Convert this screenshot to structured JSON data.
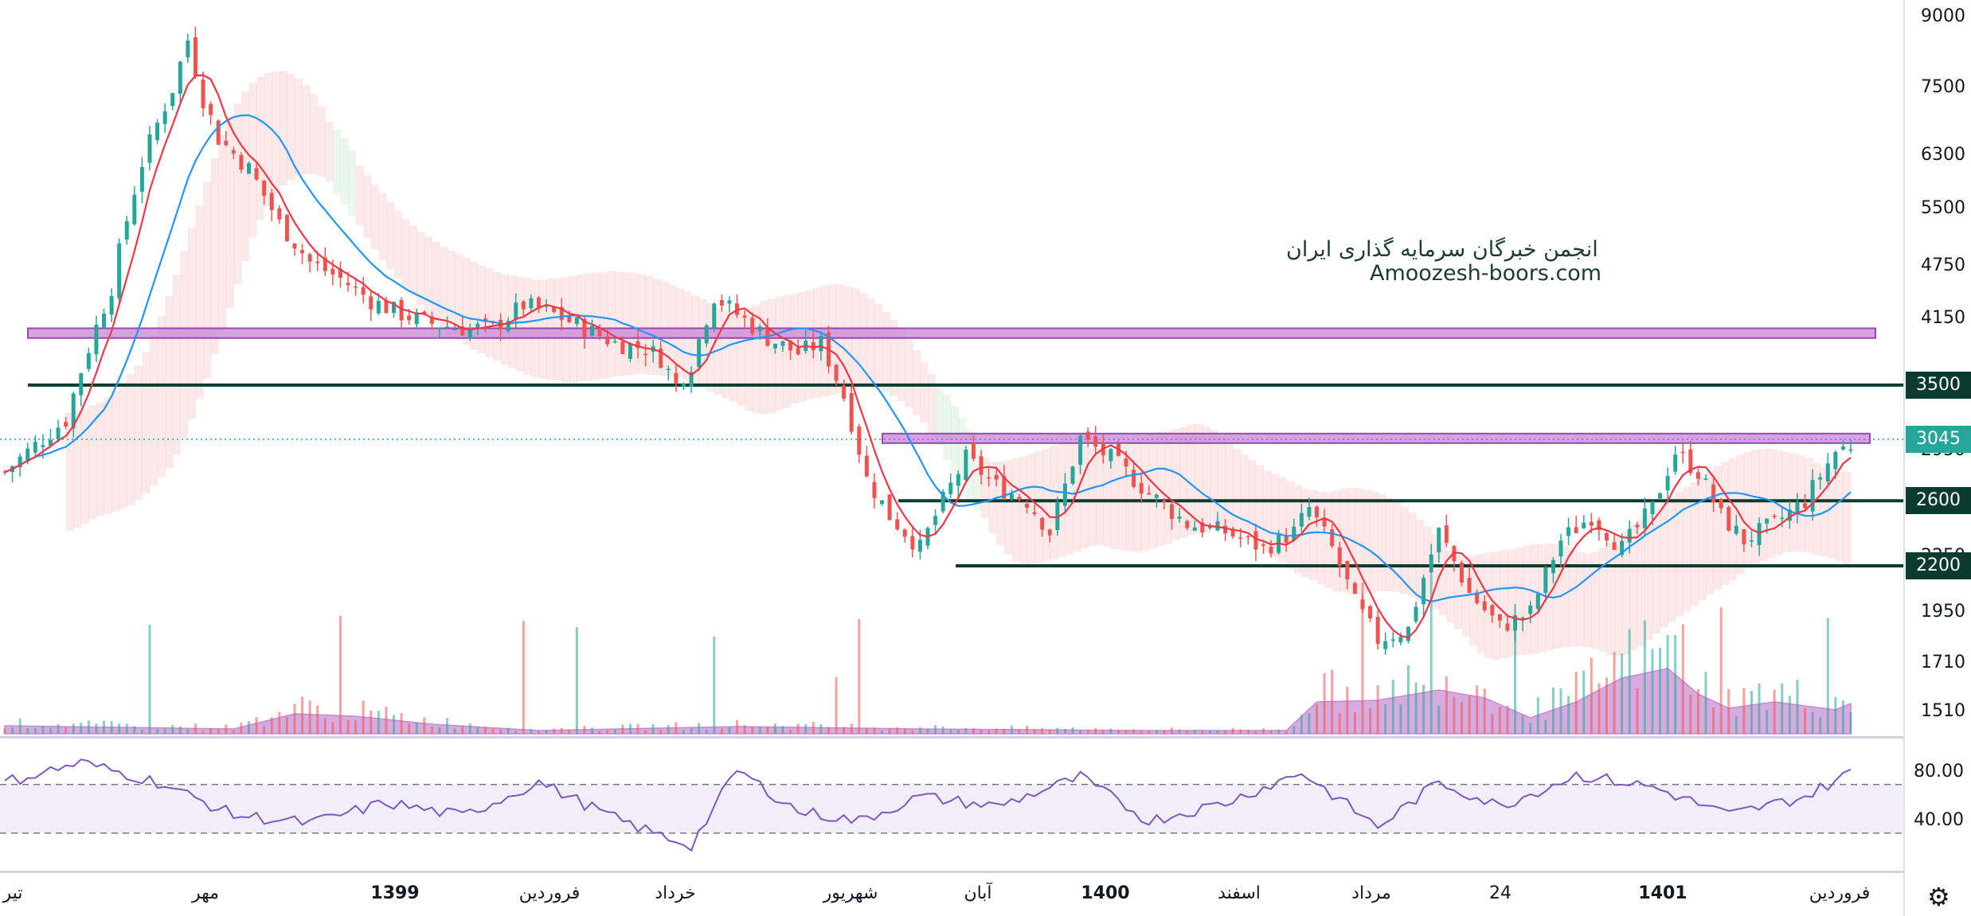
{
  "chart_data": {
    "type": "candlestick",
    "symbol_axis": "log",
    "y_ticks": [
      "9000",
      "7500",
      "6300",
      "5500",
      "4750",
      "4150",
      "3500",
      "2950",
      "2600",
      "2250",
      "1950",
      "1710",
      "1510"
    ],
    "x_ticks": [
      {
        "label": "تیر",
        "bold": false
      },
      {
        "label": "مهر",
        "bold": false
      },
      {
        "label": "1399",
        "bold": true
      },
      {
        "label": "فروردین",
        "bold": false
      },
      {
        "label": "خرداد",
        "bold": false
      },
      {
        "label": "شهریور",
        "bold": false
      },
      {
        "label": "آبان",
        "bold": false
      },
      {
        "label": "1400",
        "bold": true
      },
      {
        "label": "اسفند",
        "bold": false
      },
      {
        "label": "مرداد",
        "bold": false
      },
      {
        "label": "24",
        "bold": false
      },
      {
        "label": "1401",
        "bold": true
      },
      {
        "label": "فروردین",
        "bold": false
      }
    ],
    "last_price": "3045",
    "level_labels": [
      "3500",
      "2600",
      "2200"
    ],
    "resistance_zones": [
      {
        "low": 3950,
        "high": 4050
      },
      {
        "low": 3020,
        "high": 3090
      }
    ],
    "support_lines": [
      3500,
      2600,
      2200
    ],
    "price_path": [
      [
        0,
        2800
      ],
      [
        8,
        3200
      ],
      [
        14,
        4500
      ],
      [
        18,
        6200
      ],
      [
        22,
        7500
      ],
      [
        24,
        8500
      ],
      [
        26,
        7300
      ],
      [
        28,
        6600
      ],
      [
        32,
        6100
      ],
      [
        36,
        5300
      ],
      [
        40,
        4800
      ],
      [
        44,
        4600
      ],
      [
        48,
        4350
      ],
      [
        52,
        4200
      ],
      [
        56,
        4100
      ],
      [
        60,
        4050
      ],
      [
        64,
        4050
      ],
      [
        68,
        4300
      ],
      [
        72,
        4200
      ],
      [
        76,
        4050
      ],
      [
        80,
        3900
      ],
      [
        84,
        3850
      ],
      [
        86,
        3750
      ],
      [
        88,
        3500
      ],
      [
        90,
        3700
      ],
      [
        93,
        4400
      ],
      [
        96,
        4200
      ],
      [
        100,
        3950
      ],
      [
        104,
        3800
      ],
      [
        107,
        3900
      ],
      [
        110,
        3400
      ],
      [
        113,
        2750
      ],
      [
        116,
        2500
      ],
      [
        120,
        2300
      ],
      [
        123,
        2600
      ],
      [
        126,
        2900
      ],
      [
        130,
        2700
      ],
      [
        134,
        2600
      ],
      [
        137,
        2400
      ],
      [
        139,
        2700
      ],
      [
        141,
        3050
      ],
      [
        145,
        2900
      ],
      [
        150,
        2650
      ],
      [
        155,
        2450
      ],
      [
        160,
        2400
      ],
      [
        165,
        2300
      ],
      [
        169,
        2400
      ],
      [
        171,
        2550
      ],
      [
        174,
        2300
      ],
      [
        177,
        2000
      ],
      [
        180,
        1820
      ],
      [
        184,
        1870
      ],
      [
        188,
        2400
      ],
      [
        192,
        2050
      ],
      [
        196,
        1880
      ],
      [
        200,
        1950
      ],
      [
        204,
        2350
      ],
      [
        208,
        2500
      ],
      [
        212,
        2300
      ],
      [
        216,
        2550
      ],
      [
        219,
        2950
      ],
      [
        222,
        2800
      ],
      [
        225,
        2500
      ],
      [
        228,
        2350
      ],
      [
        232,
        2450
      ],
      [
        236,
        2600
      ],
      [
        240,
        2950
      ],
      [
        242,
        3000
      ]
    ],
    "rsi": {
      "levels": [
        70,
        30
      ],
      "ticks": [
        "80.00",
        "40.00"
      ],
      "path": [
        [
          0,
          72
        ],
        [
          10,
          88
        ],
        [
          20,
          72
        ],
        [
          30,
          45
        ],
        [
          40,
          38
        ],
        [
          50,
          55
        ],
        [
          60,
          44
        ],
        [
          70,
          72
        ],
        [
          80,
          42
        ],
        [
          85,
          30
        ],
        [
          90,
          20
        ],
        [
          96,
          82
        ],
        [
          104,
          48
        ],
        [
          112,
          40
        ],
        [
          120,
          60
        ],
        [
          130,
          52
        ],
        [
          141,
          76
        ],
        [
          150,
          40
        ],
        [
          160,
          55
        ],
        [
          170,
          80
        ],
        [
          180,
          35
        ],
        [
          188,
          72
        ],
        [
          196,
          52
        ],
        [
          206,
          78
        ],
        [
          216,
          68
        ],
        [
          226,
          45
        ],
        [
          236,
          60
        ],
        [
          242,
          80
        ]
      ]
    },
    "volume": {
      "profile": [
        [
          0,
          10
        ],
        [
          30,
          6
        ],
        [
          38,
          25
        ],
        [
          46,
          22
        ],
        [
          56,
          12
        ],
        [
          70,
          4
        ],
        [
          96,
          9
        ],
        [
          120,
          6
        ],
        [
          150,
          4
        ],
        [
          168,
          4
        ],
        [
          172,
          40
        ],
        [
          180,
          42
        ],
        [
          188,
          55
        ],
        [
          194,
          45
        ],
        [
          200,
          20
        ],
        [
          206,
          40
        ],
        [
          212,
          70
        ],
        [
          218,
          82
        ],
        [
          222,
          50
        ],
        [
          226,
          32
        ],
        [
          232,
          40
        ],
        [
          240,
          30
        ],
        [
          242,
          38
        ]
      ]
    },
    "watermark": {
      "line1": "انجمن خبرگان سرمایه گذاری ایران",
      "line2": "Amoozesh-boors.com"
    },
    "colors": {
      "up": "#26a69a",
      "down": "#ef5350",
      "ma_fast": "#f23645",
      "ma_slow": "#2196f3",
      "rsi_line": "#7e57c2",
      "zone_fill": "#ce93d8",
      "support_line": "#0b3b2e",
      "last_price_badge": "#26a69a"
    }
  }
}
